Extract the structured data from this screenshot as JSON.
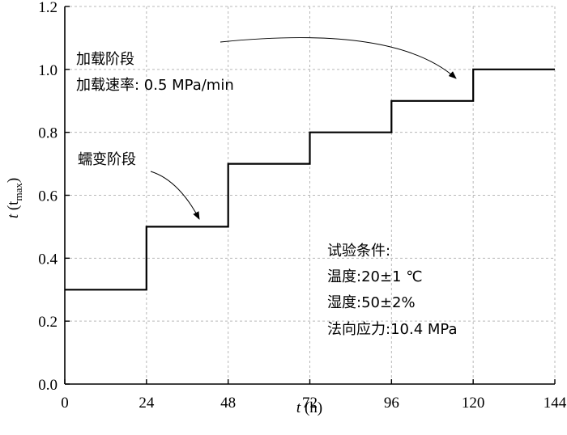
{
  "chart_data": {
    "type": "line",
    "step": true,
    "x": [
      0,
      24,
      24,
      48,
      48,
      72,
      72,
      96,
      96,
      120,
      120,
      144
    ],
    "y": [
      0.3,
      0.3,
      0.5,
      0.5,
      0.7,
      0.7,
      0.8,
      0.8,
      0.9,
      0.9,
      1.0,
      1.0
    ],
    "xlim": [
      0,
      144
    ],
    "ylim": [
      0,
      1.2
    ],
    "xticks": [
      0,
      24,
      48,
      72,
      96,
      120,
      144
    ],
    "yticks": [
      0.0,
      0.2,
      0.4,
      0.6,
      0.8,
      1.0,
      1.2
    ],
    "xtick_labels": [
      "0",
      "24",
      "48",
      "72",
      "96",
      "120",
      "144"
    ],
    "ytick_labels": [
      "0.0",
      "0.2",
      "0.4",
      "0.6",
      "0.8",
      "1.0",
      "1.2"
    ],
    "xlabel": {
      "var": "t",
      "unit": " (h)"
    },
    "ylabel": {
      "var": "t",
      "open": " (t",
      "sub": "max",
      "close": ")"
    },
    "grid": true,
    "series_color": "#000000",
    "annotations": {
      "loading": [
        "加载阶段",
        "加载速率: 0.5 MPa/min"
      ],
      "creep": "蠕变阶段",
      "conditions": [
        "试验条件:",
        "温度:20±1 ℃",
        "湿度:50±2%",
        "法向应力:10.4 MPa"
      ]
    }
  }
}
